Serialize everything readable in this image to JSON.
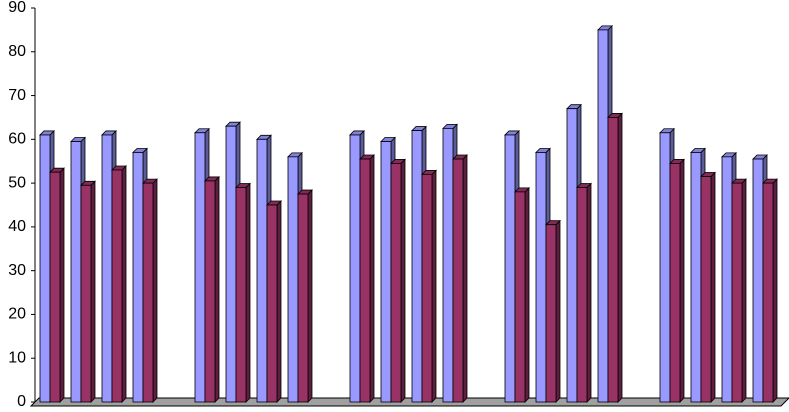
{
  "chart_data": {
    "type": "bar3d",
    "categories": [
      null,
      null,
      null,
      null,
      null,
      null,
      null,
      null,
      null,
      null,
      null,
      null,
      null,
      null,
      null,
      null,
      null,
      null,
      null,
      null,
      null,
      null,
      null,
      null
    ],
    "series": [
      {
        "color": "#9999ff",
        "values": [
          61,
          59.5,
          61,
          57,
          null,
          61.5,
          63,
          60,
          56,
          null,
          61,
          59.5,
          62,
          62.5,
          null,
          61,
          57,
          67,
          85,
          null,
          61.5,
          57,
          56,
          55.5
        ]
      },
      {
        "color": "#993366",
        "values": [
          52.5,
          49.5,
          53,
          50,
          null,
          50.5,
          49,
          45,
          47.5,
          null,
          55.5,
          54.5,
          52,
          55.5,
          null,
          48,
          40.5,
          49,
          65,
          null,
          54.5,
          51.5,
          50,
          50
        ]
      }
    ],
    "ylim": [
      0,
      90
    ],
    "yticks": [
      0,
      10,
      20,
      30,
      40,
      50,
      60,
      70,
      80,
      90
    ],
    "grid": false
  }
}
